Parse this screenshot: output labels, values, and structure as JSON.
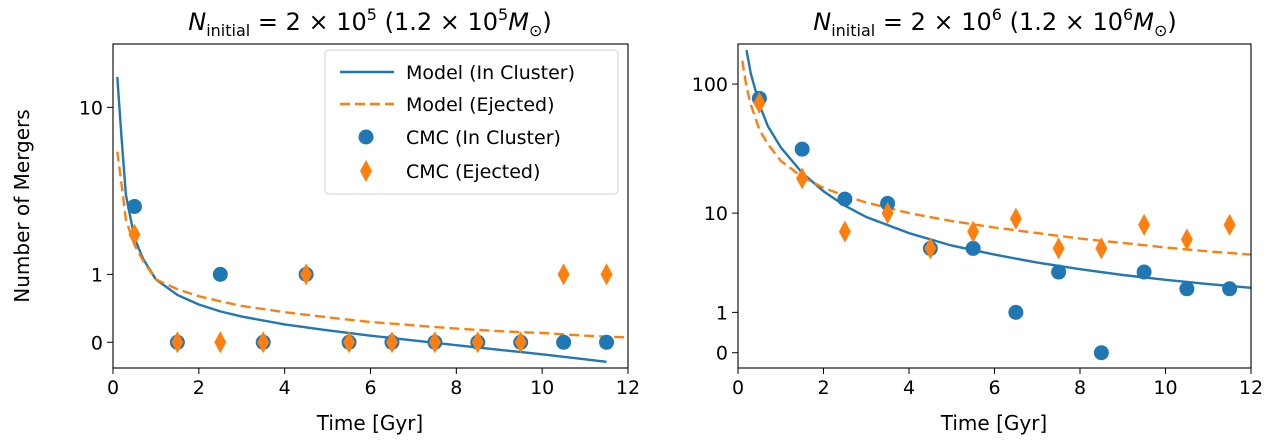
{
  "chart_data": [
    {
      "type": "scatter",
      "title": "N_initial = 2 × 10^5 (1.2 × 10^5 M_⊙)",
      "title_parts": {
        "symbol": "N",
        "subscript": "initial",
        "mid": " = 2 × 10",
        "exp": "5",
        "paren_open": " (1.2 × 10",
        "exp2": "5",
        "mass_symbol": "M",
        "mass_sub": "⊙",
        "paren_close": ")"
      },
      "xlabel": "Time [Gyr]",
      "ylabel": "Number of Mergers",
      "xlim": [
        0,
        12
      ],
      "y_scale": "symlog (linthresh 1)",
      "ylim": [
        -0.3,
        20
      ],
      "xticks": [
        "0",
        "2",
        "4",
        "6",
        "8",
        "10",
        "12"
      ],
      "yticks": [
        {
          "value": 0,
          "label": "0"
        },
        {
          "value": 1,
          "label": "1"
        },
        {
          "value": 10,
          "label": "10"
        }
      ],
      "legend": {
        "placement": "top-right",
        "entries": [
          "Model (In Cluster)",
          "Model (Ejected)",
          "CMC (In Cluster)",
          "CMC (Ejected)"
        ]
      },
      "series": [
        {
          "name": "Model (In Cluster)",
          "kind": "line",
          "style": "solid",
          "color": "#1f77b4",
          "x": [
            0.1,
            0.2,
            0.3,
            0.5,
            0.7,
            1.0,
            1.5,
            2.0,
            2.5,
            3.0,
            4.0,
            5.0,
            6.0,
            7.0,
            8.0,
            9.0,
            10.0,
            11.0,
            11.5
          ],
          "y": [
            14,
            7,
            3.5,
            1.9,
            1.35,
            0.9,
            0.62,
            0.47,
            0.37,
            0.3,
            0.2,
            0.13,
            0.07,
            0.02,
            -0.03,
            -0.08,
            -0.13,
            -0.19,
            -0.22
          ]
        },
        {
          "name": "Model (Ejected)",
          "kind": "line",
          "style": "dashed",
          "color": "#ff7f0e",
          "x": [
            0.1,
            0.2,
            0.3,
            0.5,
            0.7,
            1.0,
            1.5,
            2.0,
            2.5,
            3.0,
            4.0,
            5.0,
            6.0,
            7.0,
            8.0,
            9.0,
            10.0,
            11.0,
            12.0
          ],
          "y": [
            6,
            4,
            2.5,
            1.7,
            1.3,
            0.9,
            0.72,
            0.6,
            0.52,
            0.45,
            0.36,
            0.29,
            0.23,
            0.19,
            0.15,
            0.12,
            0.1,
            0.07,
            0.05
          ]
        },
        {
          "name": "CMC (In Cluster)",
          "kind": "scatter",
          "marker": "circle",
          "color": "#1f77b4",
          "x": [
            0.5,
            1.5,
            2.5,
            3.5,
            4.5,
            5.5,
            6.5,
            7.5,
            8.5,
            9.5,
            10.5,
            11.5
          ],
          "y": [
            3,
            0,
            1,
            0,
            1,
            0,
            0,
            0,
            0,
            0,
            0,
            0
          ]
        },
        {
          "name": "CMC (Ejected)",
          "kind": "scatter",
          "marker": "diamond",
          "color": "#ff7f0e",
          "x": [
            0.5,
            1.5,
            2.5,
            3.5,
            4.5,
            5.5,
            6.5,
            7.5,
            8.5,
            9.5,
            10.5,
            11.5
          ],
          "y": [
            2,
            0,
            0,
            0,
            1,
            0,
            0,
            0,
            0,
            0,
            1,
            1
          ]
        }
      ]
    },
    {
      "type": "scatter",
      "title": "N_initial = 2 × 10^6 (1.2 × 10^6 M_⊙)",
      "title_parts": {
        "symbol": "N",
        "subscript": "initial",
        "mid": " = 2 × 10",
        "exp": "6",
        "paren_open": " (1.2 × 10",
        "exp2": "6",
        "mass_symbol": "M",
        "mass_sub": "⊙",
        "paren_close": ")"
      },
      "xlabel": "Time [Gyr]",
      "xlim": [
        0,
        12
      ],
      "y_scale": "symlog (linthresh 1)",
      "ylim": [
        -0.3,
        200
      ],
      "xticks": [
        "0",
        "2",
        "4",
        "6",
        "8",
        "10",
        "12"
      ],
      "yticks": [
        {
          "value": 0,
          "label": "0"
        },
        {
          "value": 1,
          "label": "1"
        },
        {
          "value": 10,
          "label": "10"
        },
        {
          "value": 100,
          "label": "100"
        }
      ],
      "series": [
        {
          "name": "Model (In Cluster)",
          "kind": "line",
          "style": "solid",
          "color": "#1f77b4",
          "x": [
            0.2,
            0.3,
            0.5,
            0.7,
            1.0,
            1.5,
            2.0,
            2.5,
            3.0,
            4.0,
            5.0,
            6.0,
            7.0,
            8.0,
            9.0,
            10.0,
            11.0,
            12.0
          ],
          "y": [
            180,
            120,
            70,
            48,
            33,
            21,
            15,
            11.5,
            9.3,
            6.8,
            5.3,
            4.4,
            3.7,
            3.2,
            2.8,
            2.5,
            2.25,
            2.05
          ]
        },
        {
          "name": "Model (Ejected)",
          "kind": "line",
          "style": "dashed",
          "color": "#ff7f0e",
          "x": [
            0.1,
            0.2,
            0.3,
            0.5,
            0.7,
            1.0,
            1.5,
            2.0,
            2.5,
            3.0,
            4.0,
            5.0,
            6.0,
            7.0,
            8.0,
            9.0,
            10.0,
            11.0,
            12.0
          ],
          "y": [
            150,
            95,
            70,
            45,
            35,
            26,
            19.5,
            16,
            13.8,
            12.2,
            10,
            8.6,
            7.6,
            6.8,
            6.1,
            5.6,
            5.1,
            4.7,
            4.4
          ]
        },
        {
          "name": "CMC (In Cluster)",
          "kind": "scatter",
          "marker": "circle",
          "color": "#1f77b4",
          "x": [
            0.5,
            1.5,
            2.5,
            3.5,
            4.5,
            5.5,
            6.5,
            7.5,
            8.5,
            9.5,
            10.5,
            11.5
          ],
          "y": [
            78,
            32,
            13,
            12,
            5,
            5,
            1,
            3,
            0,
            3,
            2,
            2
          ]
        },
        {
          "name": "CMC (Ejected)",
          "kind": "scatter",
          "marker": "diamond",
          "color": "#ff7f0e",
          "x": [
            0.5,
            1.5,
            2.5,
            3.5,
            4.5,
            5.5,
            6.5,
            7.5,
            8.5,
            9.5,
            10.5,
            11.5
          ],
          "y": [
            72,
            19,
            7,
            10,
            5,
            7,
            9,
            5,
            5,
            8,
            6,
            8
          ]
        }
      ]
    }
  ]
}
